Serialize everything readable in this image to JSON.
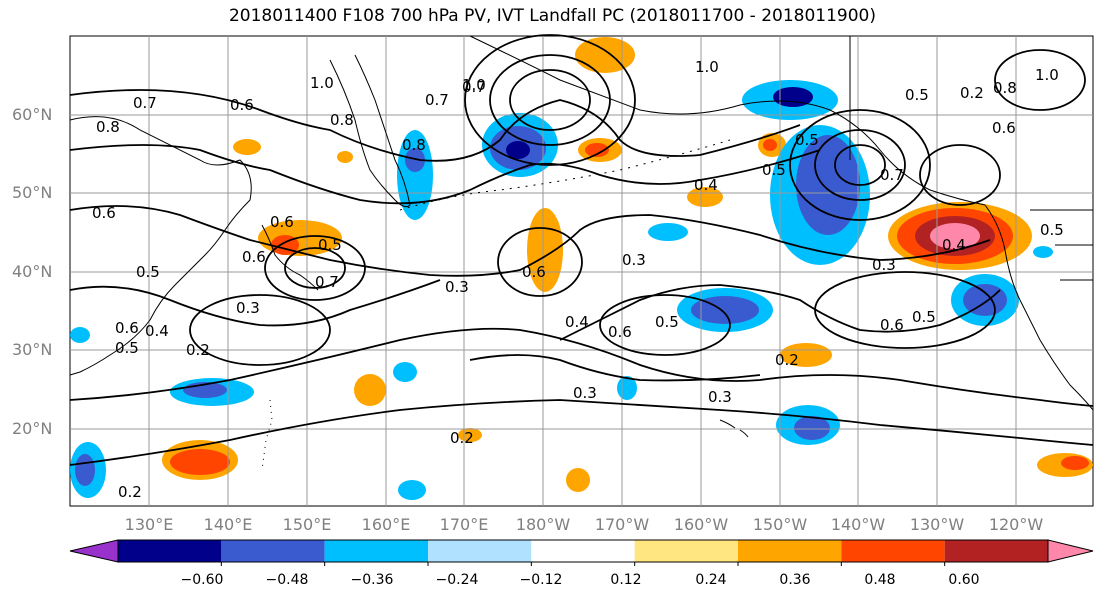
{
  "title": "2018011400 F108 700 hPa PV, IVT Landfall PC (2018011700 - 2018011900)",
  "lat_labels": [
    "60°N",
    "50°N",
    "40°N",
    "30°N",
    "20°N"
  ],
  "lon_labels": [
    "130°E",
    "140°E",
    "150°E",
    "160°E",
    "170°E",
    "180°W",
    "170°W",
    "160°W",
    "150°W",
    "140°W",
    "130°W",
    "120°W"
  ],
  "colorbar": {
    "ticks": [
      "−0.60",
      "−0.48",
      "−0.36",
      "−0.24",
      "−0.12",
      "0.12",
      "0.24",
      "0.36",
      "0.48",
      "0.60"
    ],
    "colors": [
      "#9932CC",
      "#00008B",
      "#3A5BD0",
      "#00BFFF",
      "#B0E2FF",
      "#FFFFFF",
      "#FFE680",
      "#FFA500",
      "#FF4500",
      "#B22222",
      "#FF88AA"
    ]
  },
  "contour_labels": [
    "0.7",
    "0.8",
    "0.6",
    "1.0",
    "0.8",
    "0.7",
    "1.0",
    "0.8",
    "0.7",
    "0.6",
    "0.5",
    "0.4",
    "0.3",
    "0.2",
    "0.6",
    "0.5",
    "0.7",
    "0.6",
    "0.3",
    "0.2",
    "0.3",
    "0.4",
    "0.6",
    "0.5",
    "0.3",
    "0.2",
    "0.3",
    "0.6",
    "0.5",
    "0.3",
    "0.4",
    "0.5",
    "0.7",
    "1.0",
    "1.0",
    "0.8",
    "0.6",
    "0.6",
    "0.5",
    "0.4",
    "0.5",
    "0.6",
    "0.5",
    "0.2",
    "0.5",
    "0.2"
  ]
}
